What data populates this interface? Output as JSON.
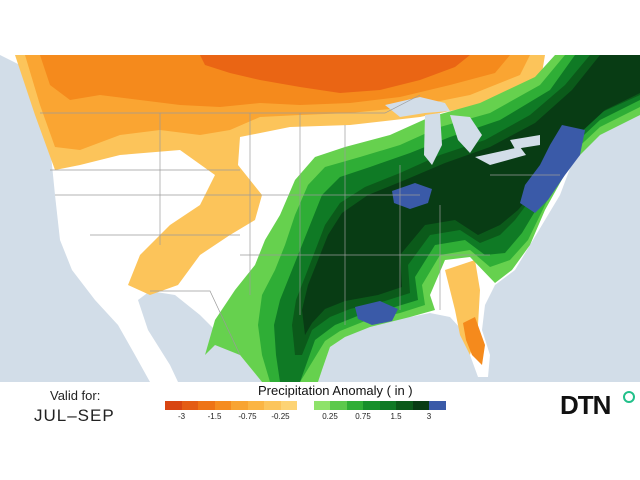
{
  "map": {
    "colors": {
      "ocean": "#d2dde8",
      "land": "#ffffff",
      "dry_light": "#fcc45a",
      "dry_mid": "#faa532",
      "dry_strong": "#f58a1c",
      "dry_extreme": "#ea6514",
      "wet_light": "#66d14e",
      "wet_mid": "#2fae36",
      "wet_strong": "#0f7a25",
      "wet_very": "#0b5a1a",
      "wet_extreme": "#083c14",
      "wet_max": "#3a5aa8",
      "borders": "#9a9a9a"
    }
  },
  "footer": {
    "valid_for_label": "Valid for:",
    "period": "JUL–SEP"
  },
  "legend": {
    "title": "Precipitation Anomaly ( in )",
    "colors": [
      "#d84512",
      "#e45c14",
      "#ee7416",
      "#f58c20",
      "#f8a432",
      "#fbb544",
      "#fcc55c",
      "#fdd374",
      "#8ee26a",
      "#5cc94c",
      "#2fae36",
      "#16902b",
      "#0f7a25",
      "#0b5a1a",
      "#083c14",
      "#3a5aa8"
    ],
    "ticks": [
      "-3",
      "-1.5",
      "-0.75",
      "-0.25",
      "0.25",
      "0.75",
      "1.5",
      "3"
    ]
  },
  "logo": {
    "text": "DTN"
  }
}
